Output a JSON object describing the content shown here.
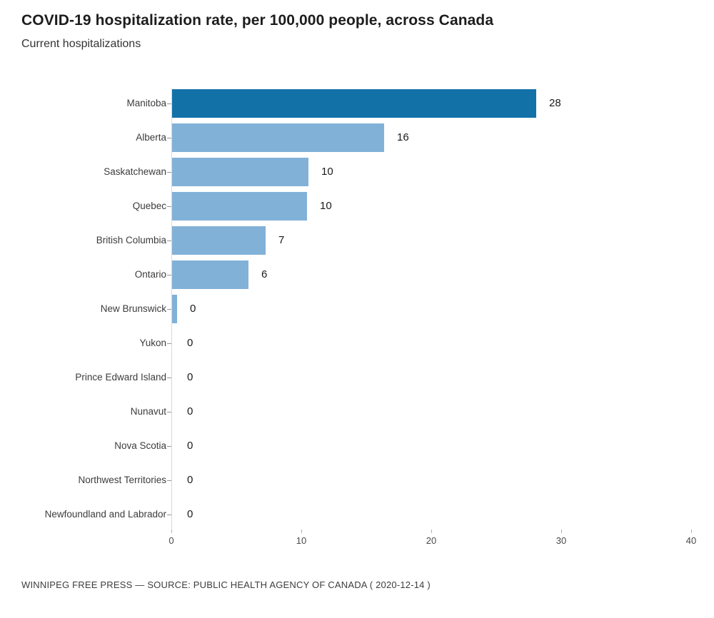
{
  "header": {
    "title": "COVID-19 hospitalization rate, per 100,000 people, across Canada",
    "subtitle": "Current hospitalizations"
  },
  "footer": {
    "attribution": "WINNIPEG FREE PRESS — SOURCE: PUBLIC HEALTH AGENCY OF CANADA ( 2020-12-14 )"
  },
  "colors": {
    "bar_highlight": "#1272a8",
    "bar_default": "#82b1d8",
    "zero_line": "#d9d9d9",
    "row_tick": "#969696",
    "axis_tick": "#b0b0b0"
  },
  "chart_data": {
    "type": "bar",
    "orientation": "horizontal",
    "title": "COVID-19 hospitalization rate, per 100,000 people, across Canada",
    "subtitle": "Current hospitalizations",
    "categories": [
      "Manitoba",
      "Alberta",
      "Saskatchewan",
      "Quebec",
      "British Columbia",
      "Ontario",
      "New Brunswick",
      "Yukon",
      "Prince Edward Island",
      "Nunavut",
      "Nova Scotia",
      "Northwest Territories",
      "Newfoundland and Labrador"
    ],
    "values": [
      28,
      16,
      10,
      10,
      7,
      6,
      0,
      0,
      0,
      0,
      0,
      0,
      0
    ],
    "bar_units": [
      28.0,
      16.3,
      10.5,
      10.4,
      7.2,
      5.9,
      0.4,
      0,
      0,
      0,
      0,
      0,
      0
    ],
    "highlighted_category": "Manitoba",
    "x_ticks": [
      0,
      10,
      20,
      30,
      40
    ],
    "xlim": [
      0,
      40
    ],
    "xlabel": "",
    "ylabel": "",
    "grid": false,
    "value_labels": true,
    "legend": "none"
  }
}
